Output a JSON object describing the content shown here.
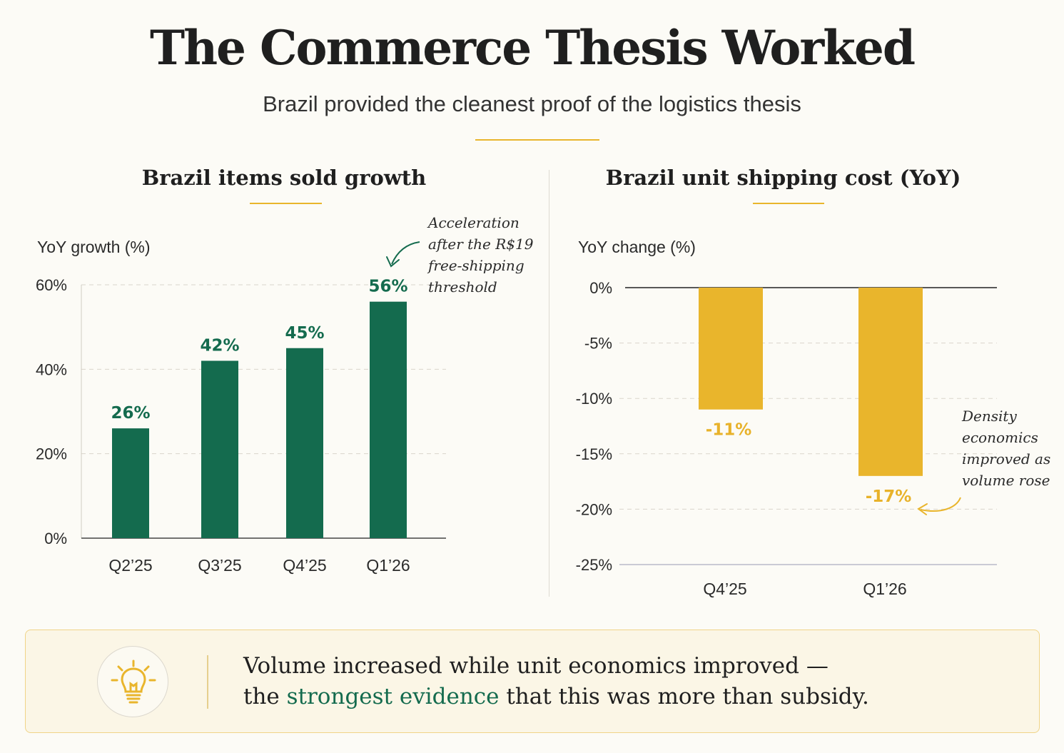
{
  "header": {
    "title": "The Commerce Thesis Worked",
    "subtitle": "Brazil provided the cleanest proof of the logistics thesis"
  },
  "colors": {
    "green": "#146b4e",
    "gold": "#e9b52c",
    "background": "#fcfbf6"
  },
  "chart_data": [
    {
      "type": "bar",
      "title": "Brazil items sold growth",
      "ylabel": "YoY growth (%)",
      "xlabel": "",
      "categories": [
        "Q2’25",
        "Q3’25",
        "Q4’25",
        "Q1’26"
      ],
      "values": [
        26,
        42,
        45,
        56
      ],
      "value_labels": [
        "26%",
        "42%",
        "45%",
        "56%"
      ],
      "ylim": [
        0,
        60
      ],
      "yticks": [
        0,
        20,
        40,
        60
      ],
      "ytick_labels": [
        "0%",
        "20%",
        "40%",
        "60%"
      ],
      "grid": true,
      "color": "#146b4e",
      "annotation": {
        "lines": [
          "Acceleration",
          "after the R$19",
          "free-shipping",
          "threshold"
        ],
        "target_category": "Q1’26"
      }
    },
    {
      "type": "bar",
      "title": "Brazil unit shipping cost (YoY)",
      "ylabel": "YoY change (%)",
      "xlabel": "",
      "categories": [
        "Q4’25",
        "Q1’26"
      ],
      "values": [
        -11,
        -17
      ],
      "value_labels": [
        "-11%",
        "-17%"
      ],
      "ylim": [
        -25,
        0
      ],
      "yticks": [
        0,
        -5,
        -10,
        -15,
        -20,
        -25
      ],
      "ytick_labels": [
        "0%",
        "-5%",
        "-10%",
        "-15%",
        "-20%",
        "-25%"
      ],
      "grid": true,
      "color": "#e9b52c",
      "annotation": {
        "lines": [
          "Density",
          "economics",
          "improved as",
          "volume rose"
        ],
        "target_category": "Q1’26"
      }
    }
  ],
  "callout": {
    "icon": "lightbulb-icon",
    "line1": "Volume increased while unit economics improved —",
    "line2_before": "the ",
    "line2_highlight": "strongest evidence",
    "line2_after": " that this was more than subsidy."
  }
}
